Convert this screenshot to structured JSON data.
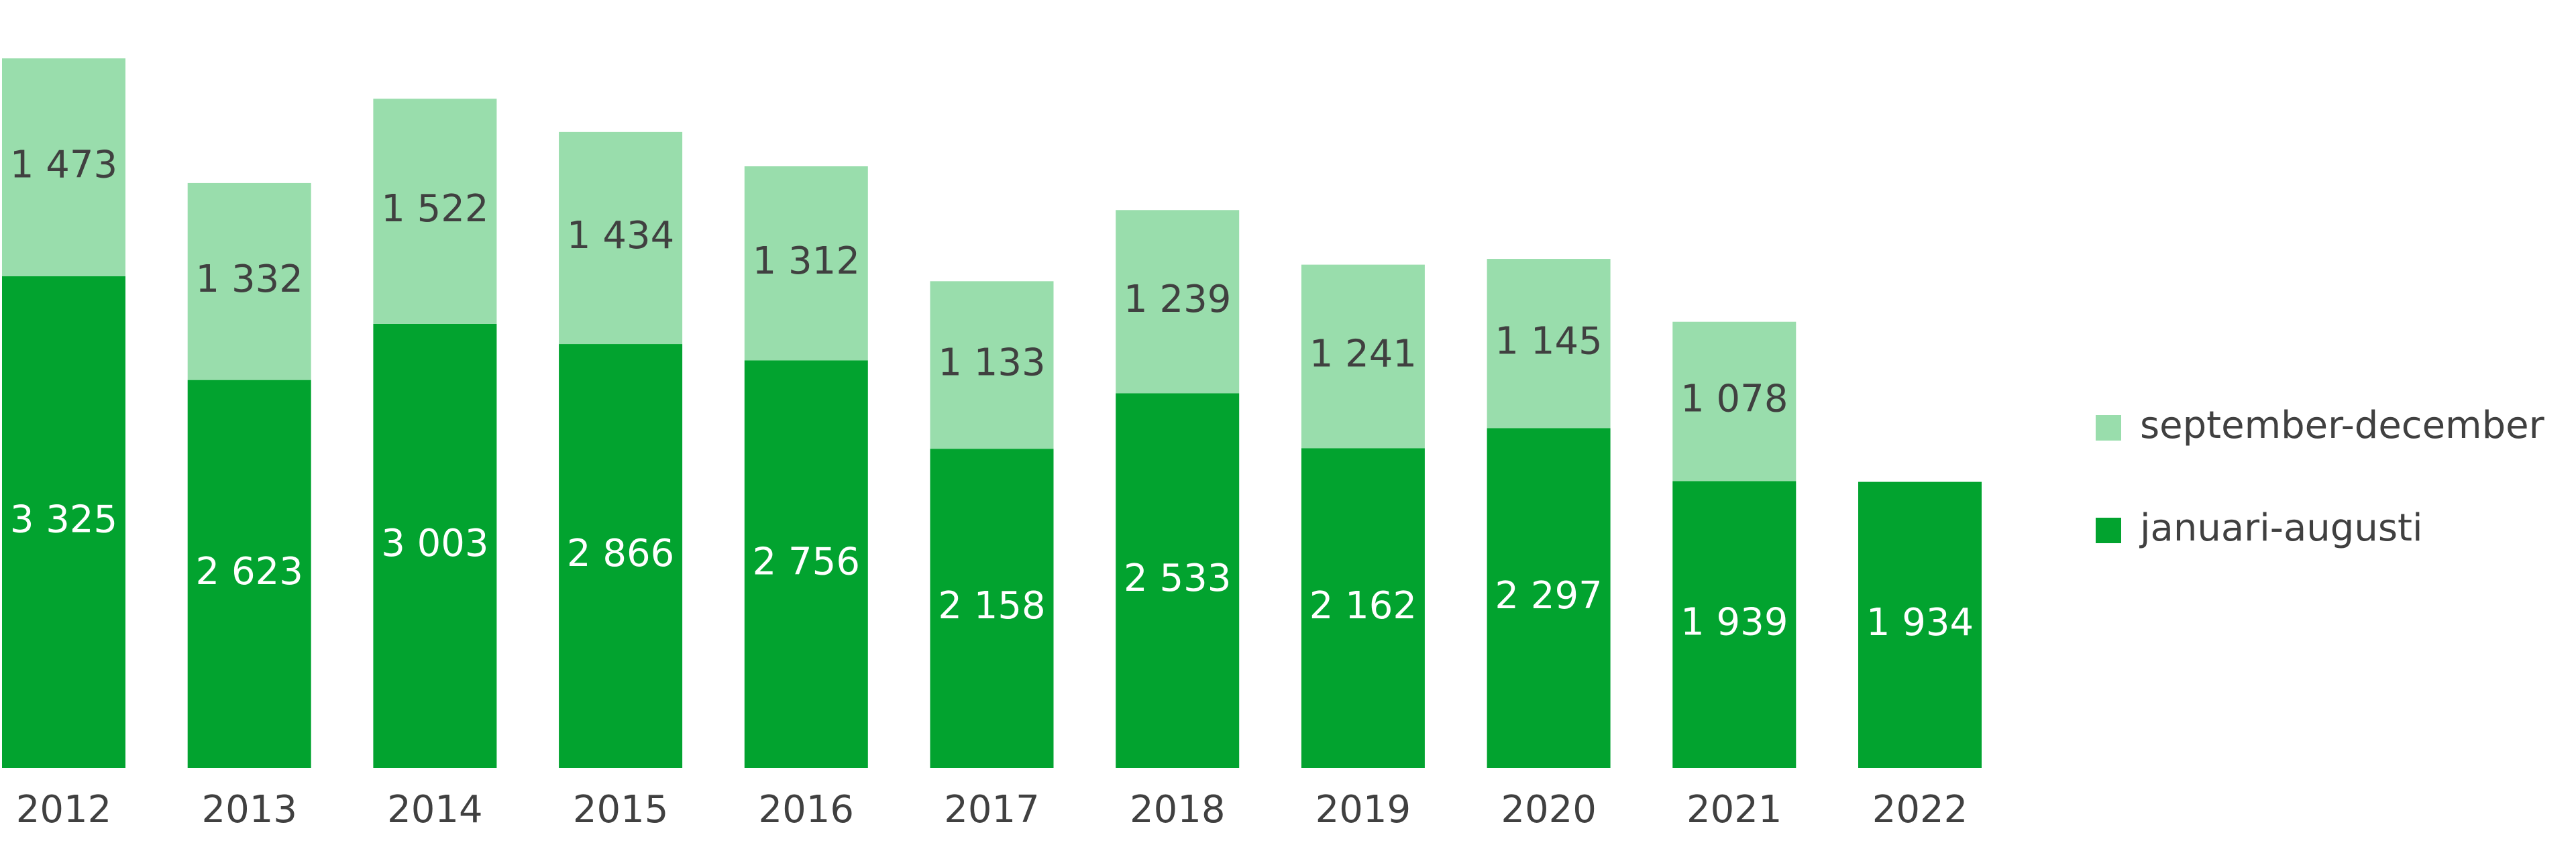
{
  "chart_data": {
    "type": "bar",
    "stacked": true,
    "title": "",
    "xlabel": "",
    "ylabel": "",
    "ylim": [
      0,
      4900
    ],
    "categories": [
      "2012",
      "2013",
      "2014",
      "2015",
      "2016",
      "2017",
      "2018",
      "2019",
      "2020",
      "2021",
      "2022"
    ],
    "series": [
      {
        "name": "januari-augusti",
        "color": "#02A32F",
        "values": [
          3325,
          2623,
          3003,
          2866,
          2756,
          2158,
          2533,
          2162,
          2297,
          1939,
          1934
        ],
        "labels": [
          "3 325",
          "2 623",
          "3 003",
          "2 866",
          "2 756",
          "2 158",
          "2 533",
          "2 162",
          "2 297",
          "1 939",
          "1 934"
        ]
      },
      {
        "name": "september-december",
        "color": "#99DDAC",
        "values": [
          1473,
          1332,
          1522,
          1434,
          1312,
          1133,
          1239,
          1241,
          1145,
          1078,
          null
        ],
        "labels": [
          "1 473",
          "1 332",
          "1 522",
          "1 434",
          "1 312",
          "1 133",
          "1 239",
          "1 241",
          "1 145",
          "1 078",
          ""
        ]
      }
    ],
    "legend": {
      "position": "right",
      "order": [
        "september-december",
        "januari-augusti"
      ]
    },
    "grid": false,
    "colors": {
      "inside_dark_label": "#ffffff",
      "inside_light_label": "#404040",
      "axis_text": "#404040"
    }
  }
}
